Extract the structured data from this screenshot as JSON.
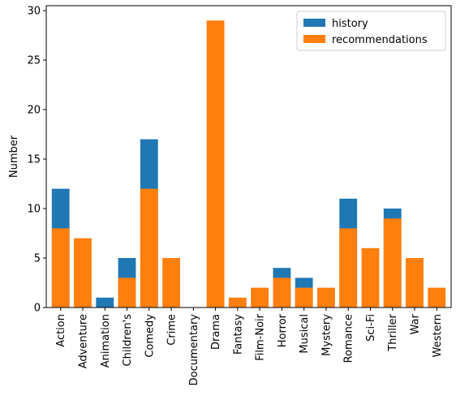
{
  "chart_data": {
    "type": "bar",
    "stacking": "overlay",
    "ylabel": "Number",
    "xlabel": "",
    "ylim": [
      0,
      30.5
    ],
    "yticks": [
      0,
      5,
      10,
      15,
      20,
      25,
      30
    ],
    "grid": false,
    "legend_position": "top-right",
    "categories": [
      "Action",
      "Adventure",
      "Animation",
      "Children's",
      "Comedy",
      "Crime",
      "Documentary",
      "Drama",
      "Fantasy",
      "Film-Noir",
      "Horror",
      "Musical",
      "Mystery",
      "Romance",
      "Sci-Fi",
      "Thriller",
      "War",
      "Western"
    ],
    "series": [
      {
        "name": "history",
        "color": "#1f77b4",
        "values": [
          12,
          0,
          1,
          5,
          17,
          0,
          0,
          0,
          0,
          0,
          4,
          3,
          0,
          11,
          0,
          10,
          0,
          0
        ]
      },
      {
        "name": "recommendations",
        "color": "#ff7f0e",
        "values": [
          8,
          7,
          0,
          3,
          12,
          5,
          0,
          29,
          1,
          2,
          3,
          2,
          2,
          8,
          6,
          9,
          5,
          2
        ]
      }
    ]
  }
}
